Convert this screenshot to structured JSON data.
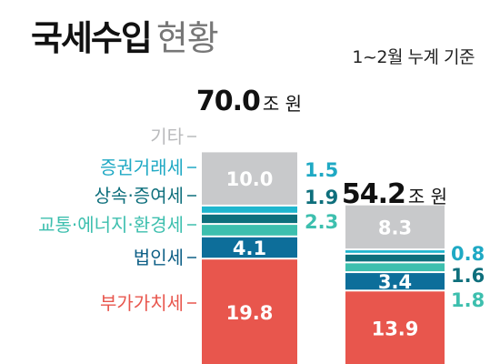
{
  "header": {
    "title_strong": "국세수입",
    "title_light": "현황",
    "period": "1~2월 누계 기준"
  },
  "colors": {
    "기타": "#c8c9cb",
    "증권거래세": "#1fb6ce",
    "상속·증여세": "#0e6f7c",
    "교통·에너지·환경세": "#3dbfae",
    "법인세": "#0d6e9a",
    "부가가치세": "#e8564d",
    "bar_gap": "#ffffff",
    "label_text": "#ffffff"
  },
  "category_label_colors": {
    "기타": "#b9babc",
    "증권거래세": "#1fa9c4",
    "상속·증여세": "#0e6f7c",
    "교통·에너지·환경세": "#3dbfae",
    "법인세": "#0d5f86",
    "부가가치세": "#e8564d"
  },
  "chart_data": {
    "type": "bar",
    "stacked": true,
    "unit": "조 원",
    "categories": [
      "bar1",
      "bar2"
    ],
    "totals": [
      {
        "value": "70.0",
        "unit": "조 원"
      },
      {
        "value": "54.2",
        "unit": "조 원"
      }
    ],
    "series": [
      {
        "name": "부가가치세",
        "values": [
          19.8,
          13.9
        ]
      },
      {
        "name": "법인세",
        "values": [
          4.1,
          3.4
        ]
      },
      {
        "name": "교통·에너지·환경세",
        "values": [
          2.3,
          1.8
        ]
      },
      {
        "name": "상속·증여세",
        "values": [
          1.9,
          1.6
        ]
      },
      {
        "name": "증권거래세",
        "values": [
          1.5,
          0.8
        ]
      },
      {
        "name": "기타",
        "values": [
          10.0,
          8.3
        ]
      }
    ],
    "visible_labels": {
      "bar1": [
        "19.8",
        "4.1",
        "2.3",
        "1.9",
        "1.5",
        "10.0"
      ],
      "bar2": [
        "13.9",
        "3.4",
        "1.8",
        "1.6",
        "0.8",
        "8.3"
      ]
    },
    "title": "",
    "xlabel": "",
    "ylabel": "",
    "legend": "left, category labels with leader ticks"
  }
}
